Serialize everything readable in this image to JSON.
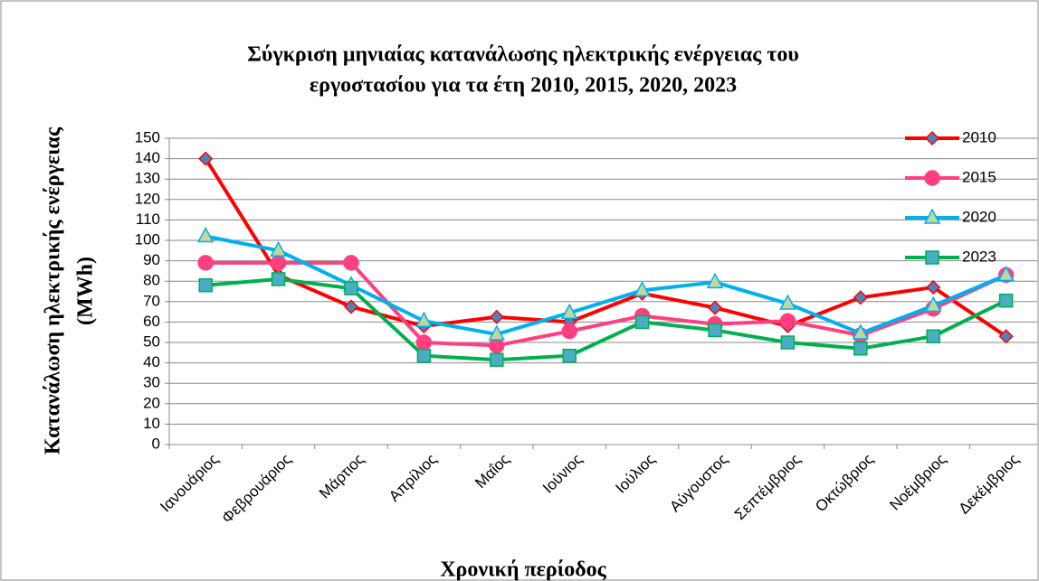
{
  "chart_data": {
    "type": "line",
    "title": [
      "Σύγκριση μηνιαίας κατανάλωσης ηλεκτρικής ενέργειας του",
      "εργοστασίου για τα έτη 2010, 2015, 2020, 2023"
    ],
    "ylabel": [
      "Κατανάλωση ηλεκτρικής ενέργειας",
      "(MWh)"
    ],
    "xlabel": "Χρονική περίοδος",
    "categories": [
      "Ιανουάριος",
      "Φεβρουάριος",
      "Μάρτιος",
      "Απρίλιος",
      "Μαΐος",
      "Ιούνιος",
      "Ιούλιος",
      "Αύγουστος",
      "Σεπτέμβριος",
      "Οκτώβριος",
      "Νοέμβριος",
      "Δεκέμβριος"
    ],
    "series": [
      {
        "name": "2010",
        "color": "#ff0000",
        "marker": "diamond",
        "marker_color": "#4f81bd",
        "values": [
          140,
          83,
          67.5,
          58,
          62.5,
          60,
          74,
          67,
          58,
          72,
          77,
          53
        ]
      },
      {
        "name": "2015",
        "color": "#ff3f7f",
        "marker": "circle",
        "marker_color": "#ff3f7f",
        "values": [
          89,
          89,
          89,
          50,
          48.5,
          55.5,
          63,
          59,
          60.5,
          53.5,
          66.5,
          83
        ]
      },
      {
        "name": "2020",
        "color": "#00b0f0",
        "marker": "triangle",
        "marker_color": "#c3d69b",
        "values": [
          102,
          95,
          78,
          60.5,
          54,
          64.5,
          75.5,
          79.5,
          69,
          54.5,
          68,
          83
        ]
      },
      {
        "name": "2023",
        "color": "#00b050",
        "marker": "square",
        "marker_color": "#4bacc6",
        "values": [
          78,
          81,
          76.5,
          43.5,
          41.5,
          43.5,
          60,
          56,
          50,
          47,
          53,
          70.5
        ]
      }
    ],
    "ylim": [
      0,
      150
    ],
    "yticks": [
      0,
      10,
      20,
      30,
      40,
      50,
      60,
      70,
      80,
      90,
      100,
      110,
      120,
      130,
      140,
      150
    ],
    "grid": true,
    "legend": "upper right"
  }
}
